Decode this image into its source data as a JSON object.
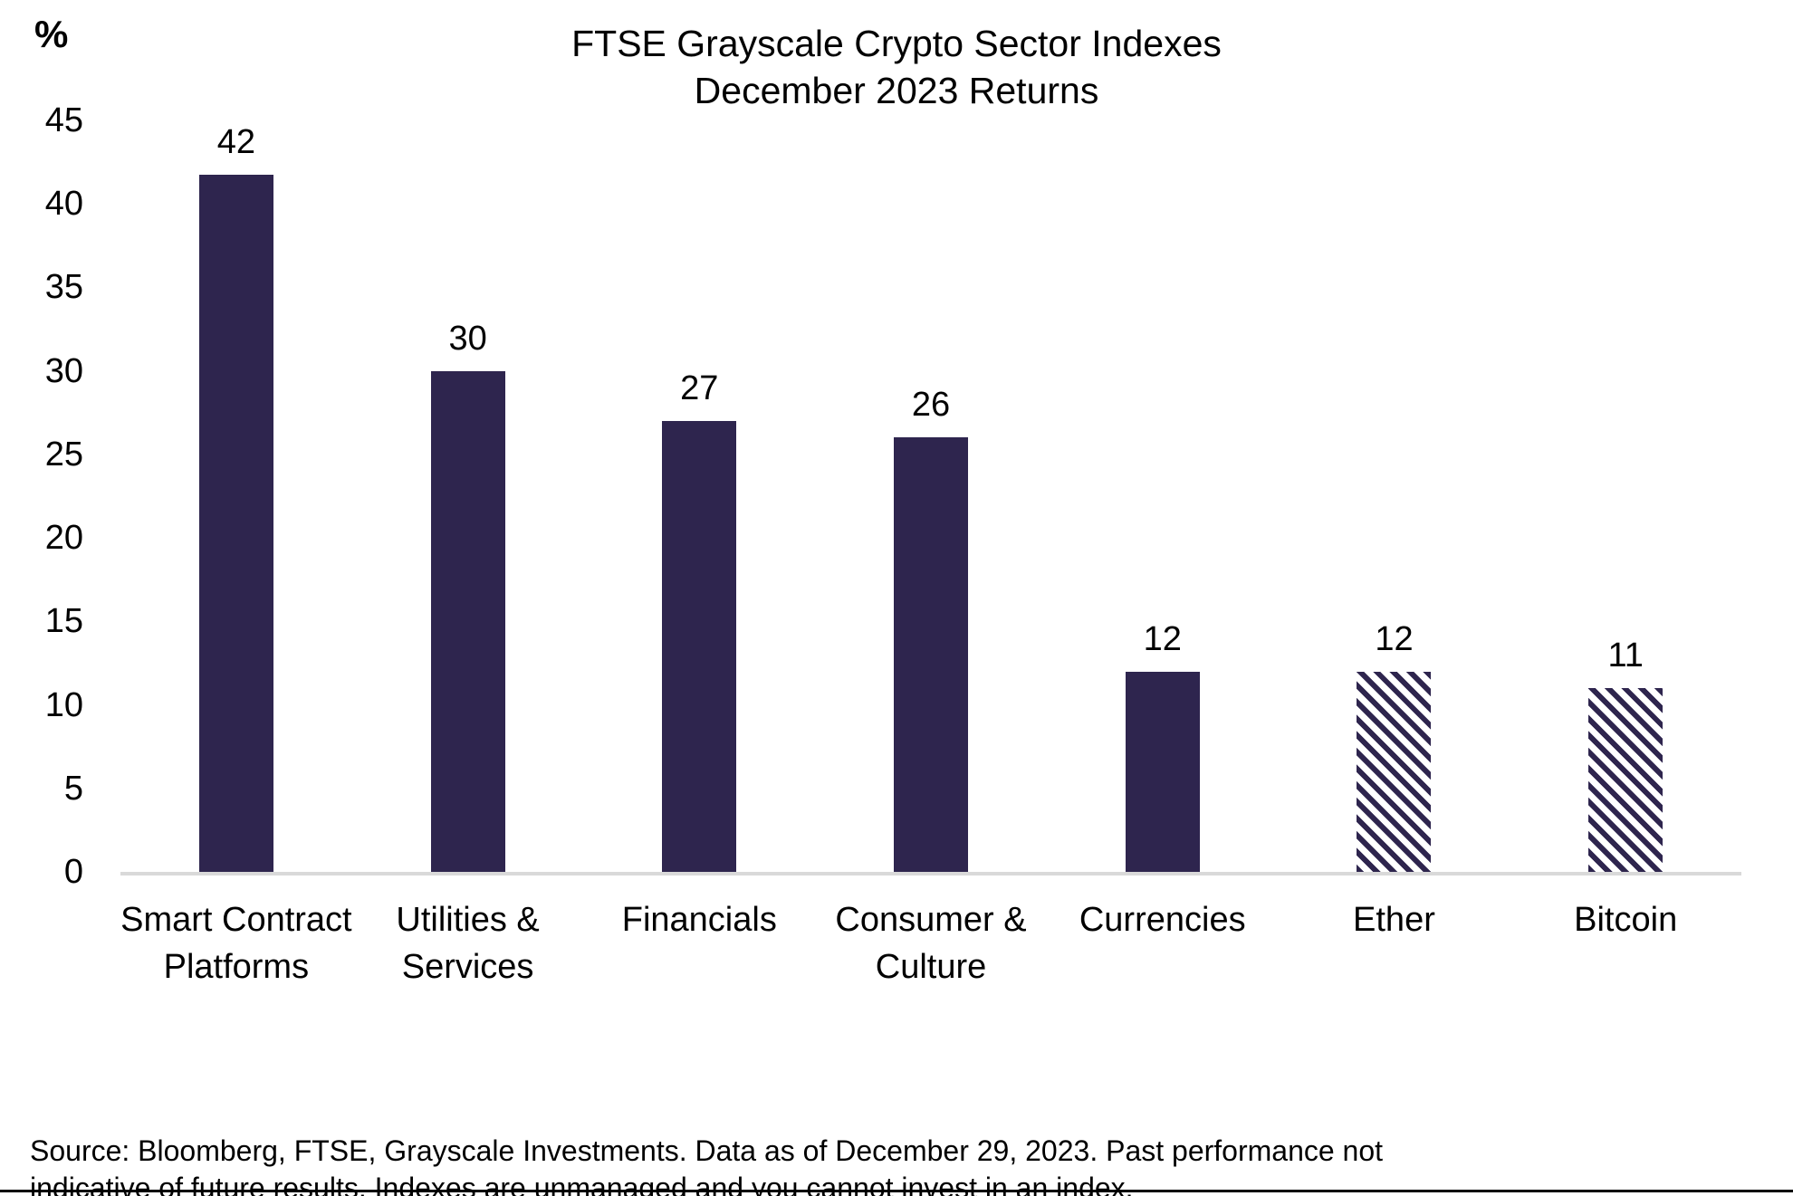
{
  "chart": {
    "unit_label": "%",
    "title_line1": "FTSE Grayscale Crypto Sector Indexes",
    "title_line2": "December 2023 Returns",
    "source_text": "Source: Bloomberg, FTSE, Grayscale Investments. Data as of December 29, 2023. Past performance not indicative of future results. Indexes are unmanaged and you cannot invest in an index."
  },
  "chart_data": {
    "type": "bar",
    "title": "FTSE Grayscale Crypto Sector Indexes December 2023 Returns",
    "xlabel": "",
    "ylabel": "%",
    "ylim": [
      0,
      45
    ],
    "ytick_step": 5,
    "grid": false,
    "legend": null,
    "categories": [
      "Smart Contract Platforms",
      "Utilities & Services",
      "Financials",
      "Consumer & Culture",
      "Currencies",
      "Ether",
      "Bitcoin"
    ],
    "values": [
      42,
      30,
      27,
      26,
      12,
      12,
      11
    ],
    "bar_styles": [
      "solid",
      "solid",
      "solid",
      "solid",
      "solid",
      "hatched",
      "hatched"
    ],
    "bar_color": "#2e254e",
    "hatch_pattern": "diagonal-stripes",
    "axis_line_color": "#d9d9d9",
    "value_labels_shown": true
  }
}
